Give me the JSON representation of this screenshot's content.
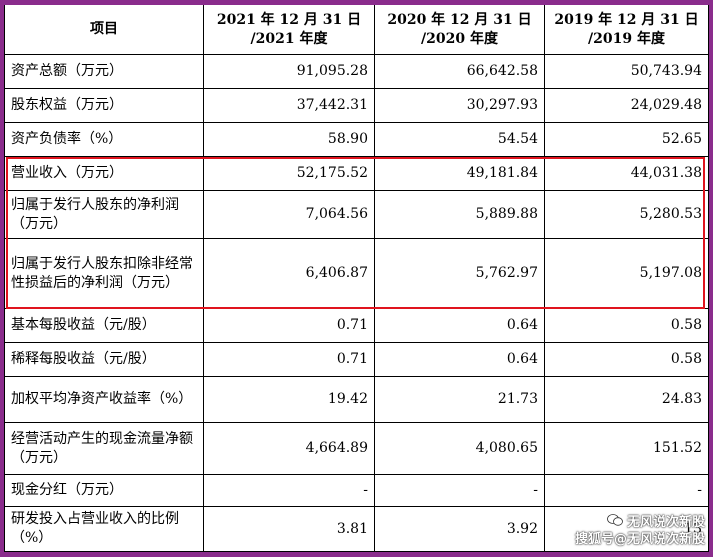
{
  "table": {
    "header": {
      "col0": "项目",
      "col1_line1": "2021 年 12 月 31 日",
      "col1_line2": "/2021 年度",
      "col2_line1": "2020 年 12 月 31 日",
      "col2_line2": "/2020 年度",
      "col3_line1": "2019 年 12 月 31 日",
      "col3_line2": "/2019 年度"
    },
    "rows": [
      {
        "label": "资产总额（万元）",
        "v2021": "91,095.28",
        "v2020": "66,642.58",
        "v2019": "50,743.94"
      },
      {
        "label": "股东权益（万元）",
        "v2021": "37,442.31",
        "v2020": "30,297.93",
        "v2019": "24,029.48"
      },
      {
        "label": "资产负债率（%）",
        "v2021": "58.90",
        "v2020": "54.54",
        "v2019": "52.65"
      },
      {
        "label": "营业收入（万元）",
        "v2021": "52,175.52",
        "v2020": "49,181.84",
        "v2019": "44,031.38"
      },
      {
        "label": "归属于发行人股东的净利润（万元）",
        "v2021": "7,064.56",
        "v2020": "5,889.88",
        "v2019": "5,280.53"
      },
      {
        "label": "归属于发行人股东扣除非经常性损益后的净利润（万元）",
        "v2021": "6,406.87",
        "v2020": "5,762.97",
        "v2019": "5,197.08"
      },
      {
        "label": "基本每股收益（元/股）",
        "v2021": "0.71",
        "v2020": "0.64",
        "v2019": "0.58"
      },
      {
        "label": "稀释每股收益（元/股）",
        "v2021": "0.71",
        "v2020": "0.64",
        "v2019": "0.58"
      },
      {
        "label": "加权平均净资产收益率（%）",
        "v2021": "19.42",
        "v2020": "21.73",
        "v2019": "24.83"
      },
      {
        "label": "经营活动产生的现金流量净额（万元）",
        "v2021": "4,664.89",
        "v2020": "4,080.65",
        "v2019": "151.52"
      },
      {
        "label": "现金分红（万元）",
        "v2021": "-",
        "v2020": "-",
        "v2019": "-"
      },
      {
        "label": "研发投入占营业收入的比例（%）",
        "v2021": "3.81",
        "v2020": "3.92",
        "v2019": "13"
      }
    ]
  },
  "watermark": {
    "line1": "无风说次新股",
    "line2": "搜狐号@无风说次新股"
  },
  "colors": {
    "frame": "#8a2c8c",
    "highlight": "#e0141e"
  }
}
